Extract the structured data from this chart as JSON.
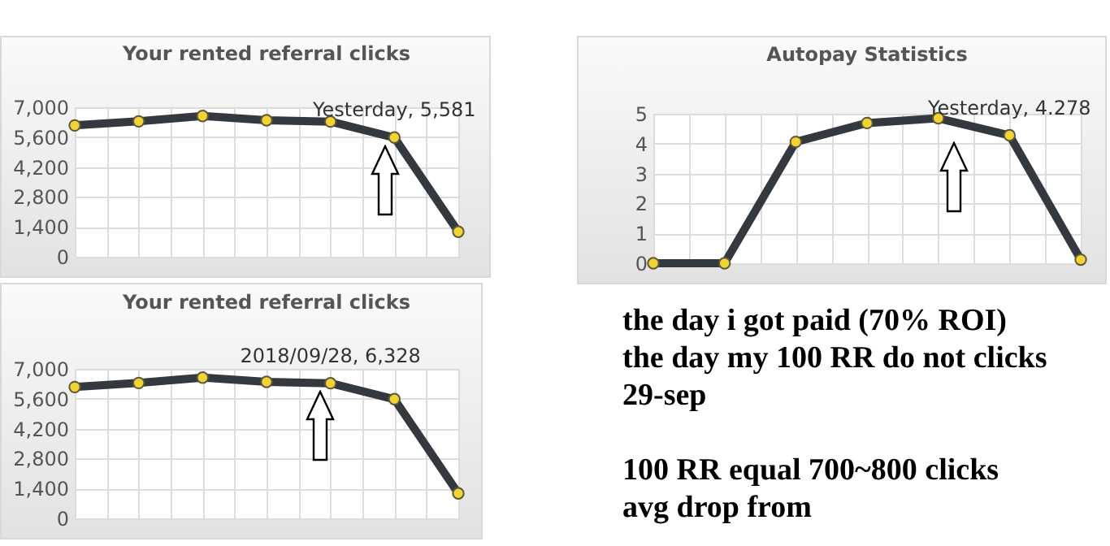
{
  "chart_data": [
    {
      "type": "line",
      "title": "Your rented referral clicks",
      "categories": [
        null,
        null,
        null,
        null,
        null,
        null,
        null
      ],
      "series": [
        {
          "color": "#33393e",
          "values": [
            6150,
            6340,
            6590,
            6390,
            6328,
            5581,
            1170
          ]
        }
      ],
      "ylim": [
        0,
        7000
      ],
      "yticks": [
        0,
        {
          "value": 1400,
          "label": "1,400"
        },
        {
          "value": 2800,
          "label": "2,800"
        },
        {
          "value": 4200,
          "label": "4,200"
        },
        {
          "value": 5600,
          "label": "5,600"
        },
        {
          "value": 7000,
          "label": "7,000"
        }
      ],
      "grid": true,
      "marker": "circle",
      "tick_labels": "y",
      "annotations": [
        {
          "text": "Yesterday, 5,581",
          "y": 5581
        }
      ]
    },
    {
      "type": "line",
      "title": "Autopay Statistics",
      "categories": [
        null,
        null,
        null,
        null,
        null,
        null,
        null
      ],
      "series": [
        {
          "color": "#33393e",
          "values": [
            0,
            0,
            4.06,
            4.69,
            4.85,
            4.278,
            0.12
          ]
        }
      ],
      "ylim": [
        0,
        5
      ],
      "yticks": [
        0,
        1,
        2,
        3,
        4,
        5
      ],
      "grid": true,
      "marker": "circle",
      "tick_labels": "y",
      "annotations": [
        {
          "text": "Yesterday, 4.278",
          "y": 4.278
        }
      ]
    },
    {
      "type": "line",
      "title": "Your rented referral clicks",
      "categories": [
        null,
        null,
        null,
        null,
        null,
        null,
        null
      ],
      "series": [
        {
          "color": "#33393e",
          "values": [
            6150,
            6340,
            6590,
            6390,
            6328,
            5581,
            1170
          ]
        }
      ],
      "ylim": [
        0,
        7000
      ],
      "yticks": [
        0,
        {
          "value": 1400,
          "label": "1,400"
        },
        {
          "value": 2800,
          "label": "2,800"
        },
        {
          "value": 4200,
          "label": "4,200"
        },
        {
          "value": 5600,
          "label": "5,600"
        },
        {
          "value": 7000,
          "label": "7,000"
        }
      ],
      "grid": true,
      "marker": "circle",
      "tick_labels": "y",
      "annotations": [
        {
          "text": "2018/09/28, 6,328",
          "y": 6328
        }
      ]
    },
    {
      "type": "other",
      "annotations": [
        "the day i got paid (70% ROI)",
        "the day my 100 RR do not clicks",
        "29-sep",
        "100 RR equal 700~800 clicks",
        "avg drop from"
      ]
    }
  ]
}
